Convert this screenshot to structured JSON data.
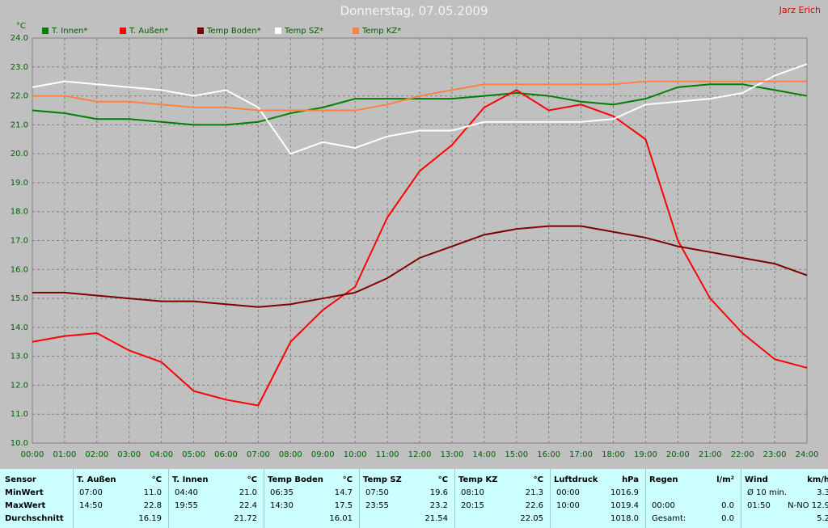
{
  "chart_data": {
    "type": "line",
    "title": "Donnerstag, 07.05.2009",
    "corner_text": "Jarz Erich",
    "y_unit": "°C",
    "x": [
      0,
      1,
      2,
      3,
      4,
      5,
      6,
      7,
      8,
      9,
      10,
      11,
      12,
      13,
      14,
      15,
      16,
      17,
      18,
      19,
      20,
      21,
      22,
      23,
      24
    ],
    "series": [
      {
        "name": "T. Innen*",
        "color": "#008000",
        "values": [
          21.5,
          21.4,
          21.2,
          21.2,
          21.1,
          21.0,
          21.0,
          21.1,
          21.4,
          21.6,
          21.9,
          21.9,
          21.9,
          21.9,
          22.0,
          22.1,
          22.0,
          21.8,
          21.7,
          21.9,
          22.3,
          22.4,
          22.4,
          22.2,
          22.0
        ]
      },
      {
        "name": "T. Außen*",
        "color": "#ff0000",
        "values": [
          13.5,
          13.7,
          13.8,
          13.2,
          12.8,
          11.8,
          11.5,
          11.3,
          13.5,
          14.6,
          15.4,
          17.8,
          19.4,
          20.3,
          21.6,
          22.2,
          21.5,
          21.7,
          21.3,
          20.5,
          17.0,
          15.0,
          13.8,
          12.9,
          12.6
        ]
      },
      {
        "name": "Temp Boden*",
        "color": "#800000",
        "values": [
          15.2,
          15.2,
          15.1,
          15.0,
          14.9,
          14.9,
          14.8,
          14.7,
          14.8,
          15.0,
          15.2,
          15.7,
          16.4,
          16.8,
          17.2,
          17.4,
          17.5,
          17.5,
          17.3,
          17.1,
          16.8,
          16.6,
          16.4,
          16.2,
          15.8
        ]
      },
      {
        "name": "Temp SZ*",
        "color": "#ffffff",
        "values": [
          22.3,
          22.5,
          22.4,
          22.3,
          22.2,
          22.0,
          22.2,
          21.6,
          20.0,
          20.4,
          20.2,
          20.6,
          20.8,
          20.8,
          21.1,
          21.1,
          21.1,
          21.1,
          21.2,
          21.7,
          21.8,
          21.9,
          22.1,
          22.7,
          23.1
        ]
      },
      {
        "name": "Temp KZ*",
        "color": "#ff8040",
        "values": [
          22.0,
          22.0,
          21.8,
          21.8,
          21.7,
          21.6,
          21.6,
          21.5,
          21.5,
          21.5,
          21.5,
          21.7,
          22.0,
          22.2,
          22.4,
          22.4,
          22.4,
          22.4,
          22.4,
          22.5,
          22.5,
          22.5,
          22.5,
          22.5,
          22.5
        ]
      }
    ],
    "xlim": [
      0,
      24
    ],
    "xticks": [
      {
        "value": 0,
        "label": "00:00"
      },
      {
        "value": 1,
        "label": "01:00"
      },
      {
        "value": 2,
        "label": "02:00"
      },
      {
        "value": 3,
        "label": "03:00"
      },
      {
        "value": 4,
        "label": "04:00"
      },
      {
        "value": 5,
        "label": "05:00"
      },
      {
        "value": 6,
        "label": "06:00"
      },
      {
        "value": 7,
        "label": "07:00"
      },
      {
        "value": 8,
        "label": "08:00"
      },
      {
        "value": 9,
        "label": "09:00"
      },
      {
        "value": 10,
        "label": "10:00"
      },
      {
        "value": 11,
        "label": "11:00"
      },
      {
        "value": 12,
        "label": "12:00"
      },
      {
        "value": 13,
        "label": "13:00"
      },
      {
        "value": 14,
        "label": "14:00"
      },
      {
        "value": 15,
        "label": "15:00"
      },
      {
        "value": 16,
        "label": "16:00"
      },
      {
        "value": 17,
        "label": "17:00"
      },
      {
        "value": 18,
        "label": "18:00"
      },
      {
        "value": 19,
        "label": "19:00"
      },
      {
        "value": 20,
        "label": "20:00"
      },
      {
        "value": 21,
        "label": "21:00"
      },
      {
        "value": 22,
        "label": "22:00"
      },
      {
        "value": 23,
        "label": "23:00"
      },
      {
        "value": 24,
        "label": "24:00"
      }
    ],
    "ylim": [
      10,
      24
    ],
    "yticks": [
      {
        "value": 10,
        "label": "10.0"
      },
      {
        "value": 11,
        "label": "11.0"
      },
      {
        "value": 12,
        "label": "12.0"
      },
      {
        "value": 13,
        "label": "13.0"
      },
      {
        "value": 14,
        "label": "14.0"
      },
      {
        "value": 15,
        "label": "15.0"
      },
      {
        "value": 16,
        "label": "16.0"
      },
      {
        "value": 17,
        "label": "17.0"
      },
      {
        "value": 18,
        "label": "18.0"
      },
      {
        "value": 19,
        "label": "19.0"
      },
      {
        "value": 20,
        "label": "20.0"
      },
      {
        "value": 21,
        "label": "21.0"
      },
      {
        "value": 22,
        "label": "22.0"
      },
      {
        "value": 23,
        "label": "23.0"
      },
      {
        "value": 24,
        "label": "24.0"
      }
    ],
    "grid": true
  },
  "table": {
    "row_labels": [
      "Sensor",
      "MinWert",
      "MaxWert",
      "Durchschnitt"
    ],
    "groups": [
      {
        "name": "T. Außen",
        "unit": "°C",
        "rows": [
          [
            "07:00",
            "11.0"
          ],
          [
            "14:50",
            "22.8"
          ],
          [
            null,
            "16.19"
          ]
        ]
      },
      {
        "name": "T. Innen",
        "unit": "°C",
        "rows": [
          [
            "04:40",
            "21.0"
          ],
          [
            "19:55",
            "22.4"
          ],
          [
            null,
            "21.72"
          ]
        ]
      },
      {
        "name": "Temp Boden",
        "unit": "°C",
        "rows": [
          [
            "06:35",
            "14.7"
          ],
          [
            "14:30",
            "17.5"
          ],
          [
            null,
            "16.01"
          ]
        ]
      },
      {
        "name": "Temp SZ",
        "unit": "°C",
        "rows": [
          [
            "07:50",
            "19.6"
          ],
          [
            "23:55",
            "23.2"
          ],
          [
            null,
            "21.54"
          ]
        ]
      },
      {
        "name": "Temp KZ",
        "unit": "°C",
        "rows": [
          [
            "08:10",
            "21.3"
          ],
          [
            "20:15",
            "22.6"
          ],
          [
            null,
            "22.05"
          ]
        ]
      },
      {
        "name": "Luftdruck",
        "unit": "hPa",
        "rows": [
          [
            "00:00",
            "1016.9"
          ],
          [
            "10:00",
            "1019.4"
          ],
          [
            null,
            "1018.0"
          ]
        ]
      },
      {
        "name": "Regen",
        "unit": "l/m²",
        "rows": [
          [
            null,
            null
          ],
          [
            "00:00",
            "0.0"
          ],
          [
            "Gesamt:",
            "0.0"
          ]
        ]
      },
      {
        "name": "Wind",
        "unit": "km/h",
        "rows": [
          [
            "Ø 10 min.",
            "3.3"
          ],
          [
            "01:50",
            "N-NO 12.9"
          ],
          [
            null,
            "5.2"
          ]
        ]
      }
    ]
  }
}
